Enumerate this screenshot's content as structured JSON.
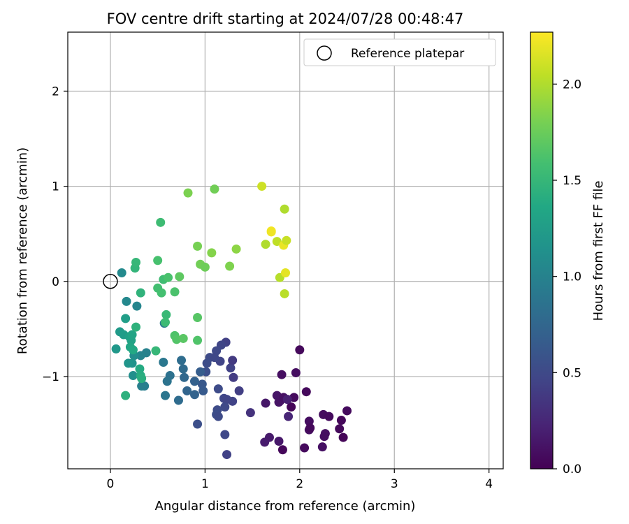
{
  "chart_data": {
    "type": "scatter",
    "title": "FOV centre drift starting at 2024/07/28 00:48:47",
    "xlabel": "Angular distance from reference (arcmin)",
    "ylabel": "Rotation from reference (arcmin)",
    "xlim": [
      -0.45,
      4.15
    ],
    "ylim": [
      -1.97,
      2.62
    ],
    "xticks": [
      0,
      1,
      2,
      3,
      4
    ],
    "xtick_labels": [
      "0",
      "1",
      "2",
      "3",
      "4"
    ],
    "yticks": [
      -1,
      0,
      1,
      2
    ],
    "ytick_labels": [
      "−1",
      "0",
      "1",
      "2"
    ],
    "grid": true,
    "legend": {
      "placement": "top-right",
      "entries": [
        "Reference platepar"
      ]
    },
    "reference_point": {
      "x": 0,
      "y": 0
    },
    "colorbar": {
      "label": "Hours from first FF file",
      "range": [
        0.0,
        2.27
      ],
      "ticks": [
        0.0,
        0.5,
        1.0,
        1.5,
        2.0
      ],
      "tick_labels": [
        "0.0",
        "0.5",
        "1.0",
        "1.5",
        "2.0"
      ],
      "colormap": "viridis"
    },
    "points": [
      {
        "x": 2.0,
        "y": -0.72,
        "t": 0.05
      },
      {
        "x": 2.07,
        "y": -1.16,
        "t": 0.05
      },
      {
        "x": 1.96,
        "y": -0.96,
        "t": 0.08
      },
      {
        "x": 1.91,
        "y": -1.32,
        "t": 0.03
      },
      {
        "x": 1.94,
        "y": -1.22,
        "t": 0.06
      },
      {
        "x": 1.79,
        "y": -1.26,
        "t": 0.07
      },
      {
        "x": 1.82,
        "y": -1.77,
        "t": 0.04
      },
      {
        "x": 2.05,
        "y": -1.75,
        "t": 0.06
      },
      {
        "x": 2.1,
        "y": -1.56,
        "t": 0.09
      },
      {
        "x": 2.1,
        "y": -1.47,
        "t": 0.08
      },
      {
        "x": 2.11,
        "y": -1.54,
        "t": 0.05
      },
      {
        "x": 2.24,
        "y": -1.74,
        "t": 0.1
      },
      {
        "x": 2.25,
        "y": -1.4,
        "t": 0.07
      },
      {
        "x": 2.31,
        "y": -1.42,
        "t": 0.06
      },
      {
        "x": 2.27,
        "y": -1.6,
        "t": 0.09
      },
      {
        "x": 2.26,
        "y": -1.63,
        "t": 0.08
      },
      {
        "x": 2.42,
        "y": -1.55,
        "t": 0.05
      },
      {
        "x": 2.44,
        "y": -1.46,
        "t": 0.04
      },
      {
        "x": 2.46,
        "y": -1.64,
        "t": 0.03
      },
      {
        "x": 2.5,
        "y": -1.36,
        "t": 0.06
      },
      {
        "x": 1.81,
        "y": -0.98,
        "t": 0.09
      },
      {
        "x": 1.76,
        "y": -1.2,
        "t": 0.13
      },
      {
        "x": 1.78,
        "y": -1.27,
        "t": 0.12
      },
      {
        "x": 1.83,
        "y": -1.22,
        "t": 0.1
      },
      {
        "x": 1.64,
        "y": -1.28,
        "t": 0.14
      },
      {
        "x": 1.78,
        "y": -1.68,
        "t": 0.15
      },
      {
        "x": 1.68,
        "y": -1.64,
        "t": 0.16
      },
      {
        "x": 1.63,
        "y": -1.69,
        "t": 0.17
      },
      {
        "x": 1.87,
        "y": -1.24,
        "t": 0.2
      },
      {
        "x": 1.88,
        "y": -1.42,
        "t": 0.24
      },
      {
        "x": 1.48,
        "y": -1.38,
        "t": 0.33
      },
      {
        "x": 1.36,
        "y": -1.15,
        "t": 0.42
      },
      {
        "x": 1.29,
        "y": -1.26,
        "t": 0.45
      },
      {
        "x": 1.3,
        "y": -1.01,
        "t": 0.4
      },
      {
        "x": 1.27,
        "y": -0.91,
        "t": 0.44
      },
      {
        "x": 1.29,
        "y": -0.83,
        "t": 0.38
      },
      {
        "x": 1.22,
        "y": -0.64,
        "t": 0.43
      },
      {
        "x": 1.17,
        "y": -0.67,
        "t": 0.47
      },
      {
        "x": 1.12,
        "y": -0.73,
        "t": 0.5
      },
      {
        "x": 1.16,
        "y": -0.84,
        "t": 0.46
      },
      {
        "x": 1.05,
        "y": -0.8,
        "t": 0.51
      },
      {
        "x": 1.1,
        "y": -0.8,
        "t": 0.49
      },
      {
        "x": 1.02,
        "y": -0.86,
        "t": 0.53
      },
      {
        "x": 1.01,
        "y": -0.95,
        "t": 0.55
      },
      {
        "x": 1.14,
        "y": -1.13,
        "t": 0.52
      },
      {
        "x": 1.2,
        "y": -1.23,
        "t": 0.48
      },
      {
        "x": 1.23,
        "y": -1.24,
        "t": 0.46
      },
      {
        "x": 1.21,
        "y": -1.32,
        "t": 0.5
      },
      {
        "x": 1.13,
        "y": -1.35,
        "t": 0.52
      },
      {
        "x": 1.12,
        "y": -1.4,
        "t": 0.54
      },
      {
        "x": 1.14,
        "y": -1.42,
        "t": 0.51
      },
      {
        "x": 1.21,
        "y": -1.61,
        "t": 0.49
      },
      {
        "x": 1.23,
        "y": -1.82,
        "t": 0.44
      },
      {
        "x": 0.92,
        "y": -1.5,
        "t": 0.55
      },
      {
        "x": 0.97,
        "y": -1.08,
        "t": 0.62
      },
      {
        "x": 0.98,
        "y": -1.15,
        "t": 0.64
      },
      {
        "x": 0.95,
        "y": -0.95,
        "t": 0.66
      },
      {
        "x": 0.89,
        "y": -1.05,
        "t": 0.7
      },
      {
        "x": 0.89,
        "y": -1.19,
        "t": 0.72
      },
      {
        "x": 0.81,
        "y": -1.15,
        "t": 0.74
      },
      {
        "x": 0.78,
        "y": -1.01,
        "t": 0.76
      },
      {
        "x": 0.77,
        "y": -0.92,
        "t": 0.79
      },
      {
        "x": 0.75,
        "y": -0.83,
        "t": 0.81
      },
      {
        "x": 0.72,
        "y": -1.25,
        "t": 0.8
      },
      {
        "x": 0.63,
        "y": -0.99,
        "t": 0.84
      },
      {
        "x": 0.6,
        "y": -1.05,
        "t": 0.86
      },
      {
        "x": 0.58,
        "y": -1.2,
        "t": 0.88
      },
      {
        "x": 0.56,
        "y": -0.85,
        "t": 0.9
      },
      {
        "x": 0.57,
        "y": -0.44,
        "t": 0.92
      },
      {
        "x": 0.36,
        "y": -1.1,
        "t": 0.95
      },
      {
        "x": 0.33,
        "y": -1.1,
        "t": 0.97
      },
      {
        "x": 0.38,
        "y": -0.75,
        "t": 0.99
      },
      {
        "x": 0.32,
        "y": -0.78,
        "t": 1.01
      },
      {
        "x": 0.28,
        "y": -0.26,
        "t": 1.03
      },
      {
        "x": 0.17,
        "y": -0.21,
        "t": 1.05
      },
      {
        "x": 0.12,
        "y": 0.09,
        "t": 1.07
      },
      {
        "x": 0.25,
        "y": -0.78,
        "t": 1.1
      },
      {
        "x": 0.24,
        "y": -0.99,
        "t": 1.12
      },
      {
        "x": 0.23,
        "y": -0.86,
        "t": 1.15
      },
      {
        "x": 0.19,
        "y": -0.86,
        "t": 1.17
      },
      {
        "x": 0.06,
        "y": -0.71,
        "t": 1.2
      },
      {
        "x": 0.1,
        "y": -0.53,
        "t": 1.22
      },
      {
        "x": 0.14,
        "y": -0.56,
        "t": 1.24
      },
      {
        "x": 0.16,
        "y": -0.39,
        "t": 1.26
      },
      {
        "x": 0.2,
        "y": -0.58,
        "t": 1.28
      },
      {
        "x": 0.22,
        "y": -0.62,
        "t": 1.3
      },
      {
        "x": 0.23,
        "y": -0.56,
        "t": 1.32
      },
      {
        "x": 0.21,
        "y": -0.69,
        "t": 1.34
      },
      {
        "x": 0.24,
        "y": -0.72,
        "t": 1.36
      },
      {
        "x": 0.31,
        "y": -0.92,
        "t": 1.38
      },
      {
        "x": 0.32,
        "y": -0.99,
        "t": 1.4
      },
      {
        "x": 0.33,
        "y": -1.02,
        "t": 1.42
      },
      {
        "x": 0.16,
        "y": -1.2,
        "t": 1.44
      },
      {
        "x": 0.27,
        "y": -0.48,
        "t": 1.45
      },
      {
        "x": 0.32,
        "y": -0.12,
        "t": 1.46
      },
      {
        "x": 0.26,
        "y": 0.14,
        "t": 1.48
      },
      {
        "x": 0.27,
        "y": 0.2,
        "t": 1.5
      },
      {
        "x": 0.48,
        "y": -0.73,
        "t": 1.5
      },
      {
        "x": 0.59,
        "y": -0.35,
        "t": 1.52
      },
      {
        "x": 0.58,
        "y": -0.43,
        "t": 1.54
      },
      {
        "x": 0.56,
        "y": 0.02,
        "t": 1.56
      },
      {
        "x": 0.53,
        "y": 0.62,
        "t": 1.55
      },
      {
        "x": 0.5,
        "y": -0.07,
        "t": 1.58
      },
      {
        "x": 0.5,
        "y": 0.22,
        "t": 1.6
      },
      {
        "x": 0.54,
        "y": -0.12,
        "t": 1.59
      },
      {
        "x": 0.61,
        "y": 0.04,
        "t": 1.61
      },
      {
        "x": 0.68,
        "y": -0.11,
        "t": 1.62
      },
      {
        "x": 0.68,
        "y": -0.57,
        "t": 1.63
      },
      {
        "x": 0.7,
        "y": -0.61,
        "t": 1.65
      },
      {
        "x": 0.77,
        "y": -0.6,
        "t": 1.68
      },
      {
        "x": 0.73,
        "y": 0.05,
        "t": 1.7
      },
      {
        "x": 0.92,
        "y": -0.38,
        "t": 1.67
      },
      {
        "x": 0.92,
        "y": -0.62,
        "t": 1.64
      },
      {
        "x": 0.92,
        "y": 0.37,
        "t": 1.8
      },
      {
        "x": 0.95,
        "y": 0.18,
        "t": 1.78
      },
      {
        "x": 1.0,
        "y": 0.15,
        "t": 1.76
      },
      {
        "x": 1.07,
        "y": 0.3,
        "t": 1.85
      },
      {
        "x": 0.82,
        "y": 0.93,
        "t": 1.82
      },
      {
        "x": 1.1,
        "y": 0.97,
        "t": 1.78
      },
      {
        "x": 1.26,
        "y": 0.16,
        "t": 1.83
      },
      {
        "x": 1.33,
        "y": 0.34,
        "t": 1.88
      },
      {
        "x": 1.6,
        "y": 1.0,
        "t": 2.1
      },
      {
        "x": 1.64,
        "y": 0.39,
        "t": 2.0
      },
      {
        "x": 1.7,
        "y": 0.53,
        "t": 2.25
      },
      {
        "x": 1.7,
        "y": 0.52,
        "t": 2.22
      },
      {
        "x": 1.76,
        "y": 0.42,
        "t": 2.05
      },
      {
        "x": 1.79,
        "y": 0.04,
        "t": 2.02
      },
      {
        "x": 1.84,
        "y": 0.76,
        "t": 2.0
      },
      {
        "x": 1.83,
        "y": 0.38,
        "t": 2.2
      },
      {
        "x": 1.86,
        "y": 0.43,
        "t": 2.08
      },
      {
        "x": 1.85,
        "y": 0.09,
        "t": 2.18
      },
      {
        "x": 1.84,
        "y": -0.13,
        "t": 2.03
      }
    ]
  }
}
